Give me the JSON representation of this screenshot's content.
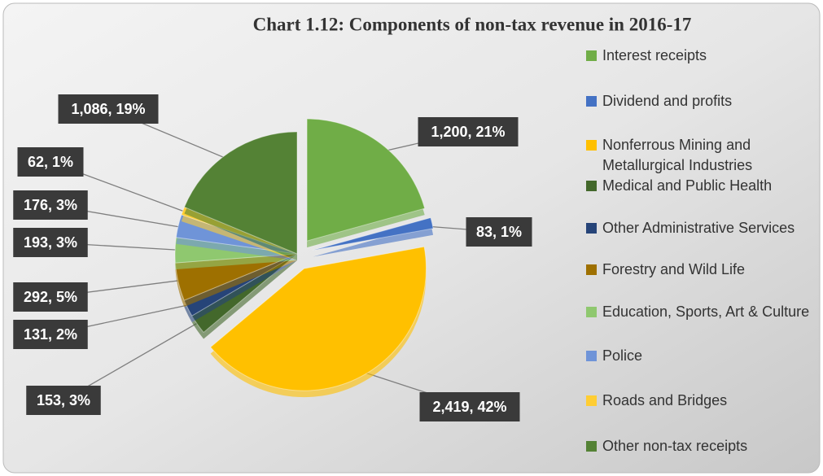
{
  "chart_data": {
    "type": "pie",
    "title": "Chart 1.12: Components of non-tax revenue in 2016-17",
    "categories": [
      "Interest receipts",
      "Dividend and profits",
      "Nonferrous Mining and Metallurgical Industries",
      "Medical and Public Health",
      "Other Administrative Services",
      "Forestry and Wild Life",
      "Education, Sports, Art & Culture",
      "Police",
      "Roads and Bridges",
      "Other non-tax receipts"
    ],
    "values": [
      1200,
      83,
      2419,
      153,
      131,
      292,
      193,
      176,
      62,
      1086
    ],
    "value_labels": [
      "1,200, 21%",
      "83, 1%",
      "2,419, 42%",
      "153, 3%",
      "131, 2%",
      "292, 5%",
      "193, 3%",
      "176, 3%",
      "62, 1%",
      "1,086, 19%"
    ],
    "colors": [
      "#70ad47",
      "#4472c4",
      "#ffc000",
      "#43682b",
      "#264478",
      "#9e7000",
      "#8fc86f",
      "#6f94d8",
      "#ffcd33",
      "#548235"
    ]
  }
}
